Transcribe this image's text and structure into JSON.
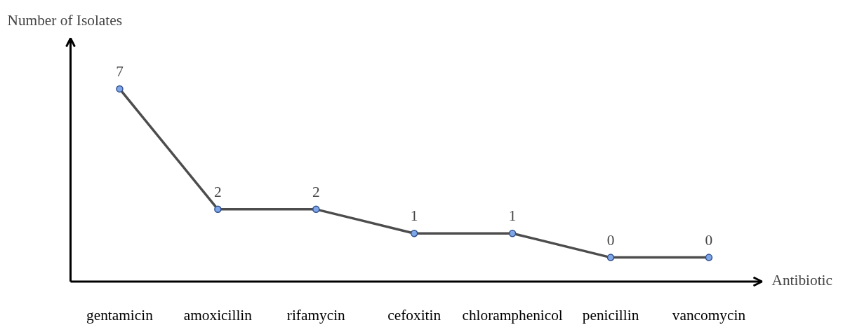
{
  "chart_data": {
    "type": "line",
    "xlabel": "Antibiotic",
    "ylabel": "Number of Isolates",
    "categories": [
      "gentamicin",
      "amoxicillin",
      "rifamycin",
      "cefoxitin",
      "chloramphenicol",
      "penicillin",
      "vancomycin"
    ],
    "series": [
      {
        "color": "#4d4d4d",
        "values": [
          7,
          2,
          2,
          1,
          1,
          0,
          0
        ]
      }
    ],
    "ylim": [
      -1,
      9.1
    ],
    "data_labels": true,
    "marker": "circle",
    "line_style": "solid",
    "grid": false,
    "tick_labels": "x"
  }
}
